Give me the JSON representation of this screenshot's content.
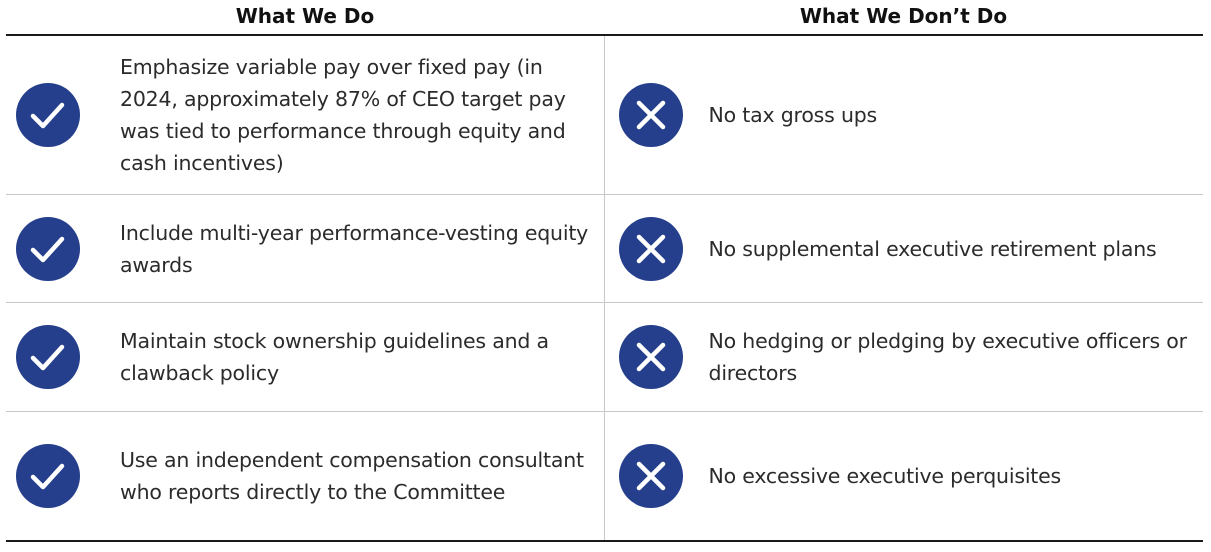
{
  "header": {
    "do_title": "What We Do",
    "dont_title": "What We Don’t Do"
  },
  "rows": [
    {
      "do": "Emphasize variable pay over fixed pay (in 2024, approximately 87% of CEO target pay was tied to performance through equity and cash incentives)",
      "dont": "No tax gross ups"
    },
    {
      "do": "Include multi-year performance-vesting equity awards",
      "dont": "No supplemental executive retirement plans"
    },
    {
      "do": "Maintain stock ownership guidelines and a clawback policy",
      "dont": "No hedging or pledging by executive officers or directors"
    },
    {
      "do": "Use an independent compensation consultant who reports directly to the Committee",
      "dont": "No excessive executive perquisites"
    }
  ],
  "icons": {
    "do": "checkmark-circle-icon",
    "dont": "x-circle-icon"
  },
  "colors": {
    "icon_fill": "#253f8c",
    "text": "#2b2b2b",
    "rule_heavy": "#1a1a1a",
    "rule_light": "#c8c8c8"
  }
}
